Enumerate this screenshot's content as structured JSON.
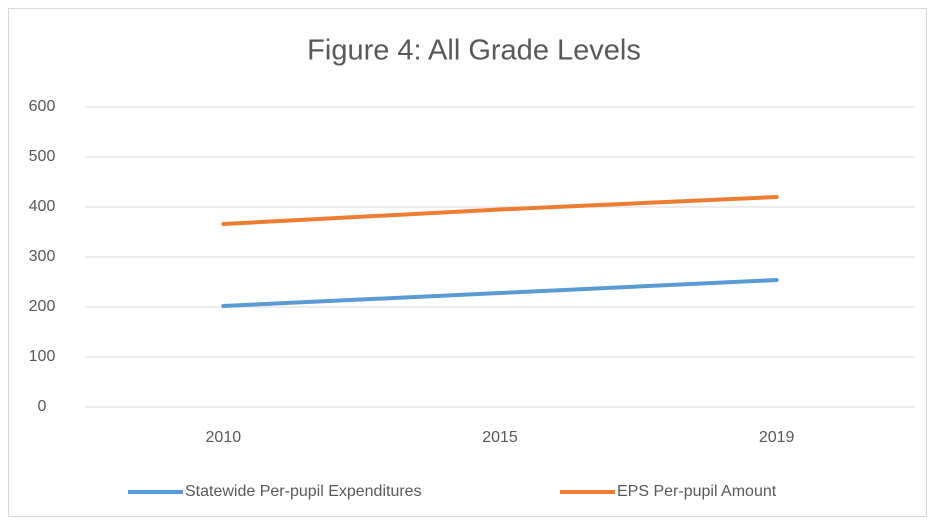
{
  "chart_data": {
    "type": "line",
    "title": "Figure 4: All Grade Levels",
    "categories": [
      "2010",
      "2015",
      "2019"
    ],
    "series": [
      {
        "name": "Statewide Per-pupil Expenditures",
        "color": "#5b9bd5",
        "values": [
          202,
          228,
          254
        ]
      },
      {
        "name": "EPS Per-pupil Amount",
        "color": "#ed7d31",
        "values": [
          366,
          395,
          420
        ]
      }
    ],
    "ylim": [
      0,
      600
    ],
    "yticks": [
      0,
      100,
      200,
      300,
      400,
      500,
      600
    ],
    "grid": true,
    "legend": "bottom"
  }
}
